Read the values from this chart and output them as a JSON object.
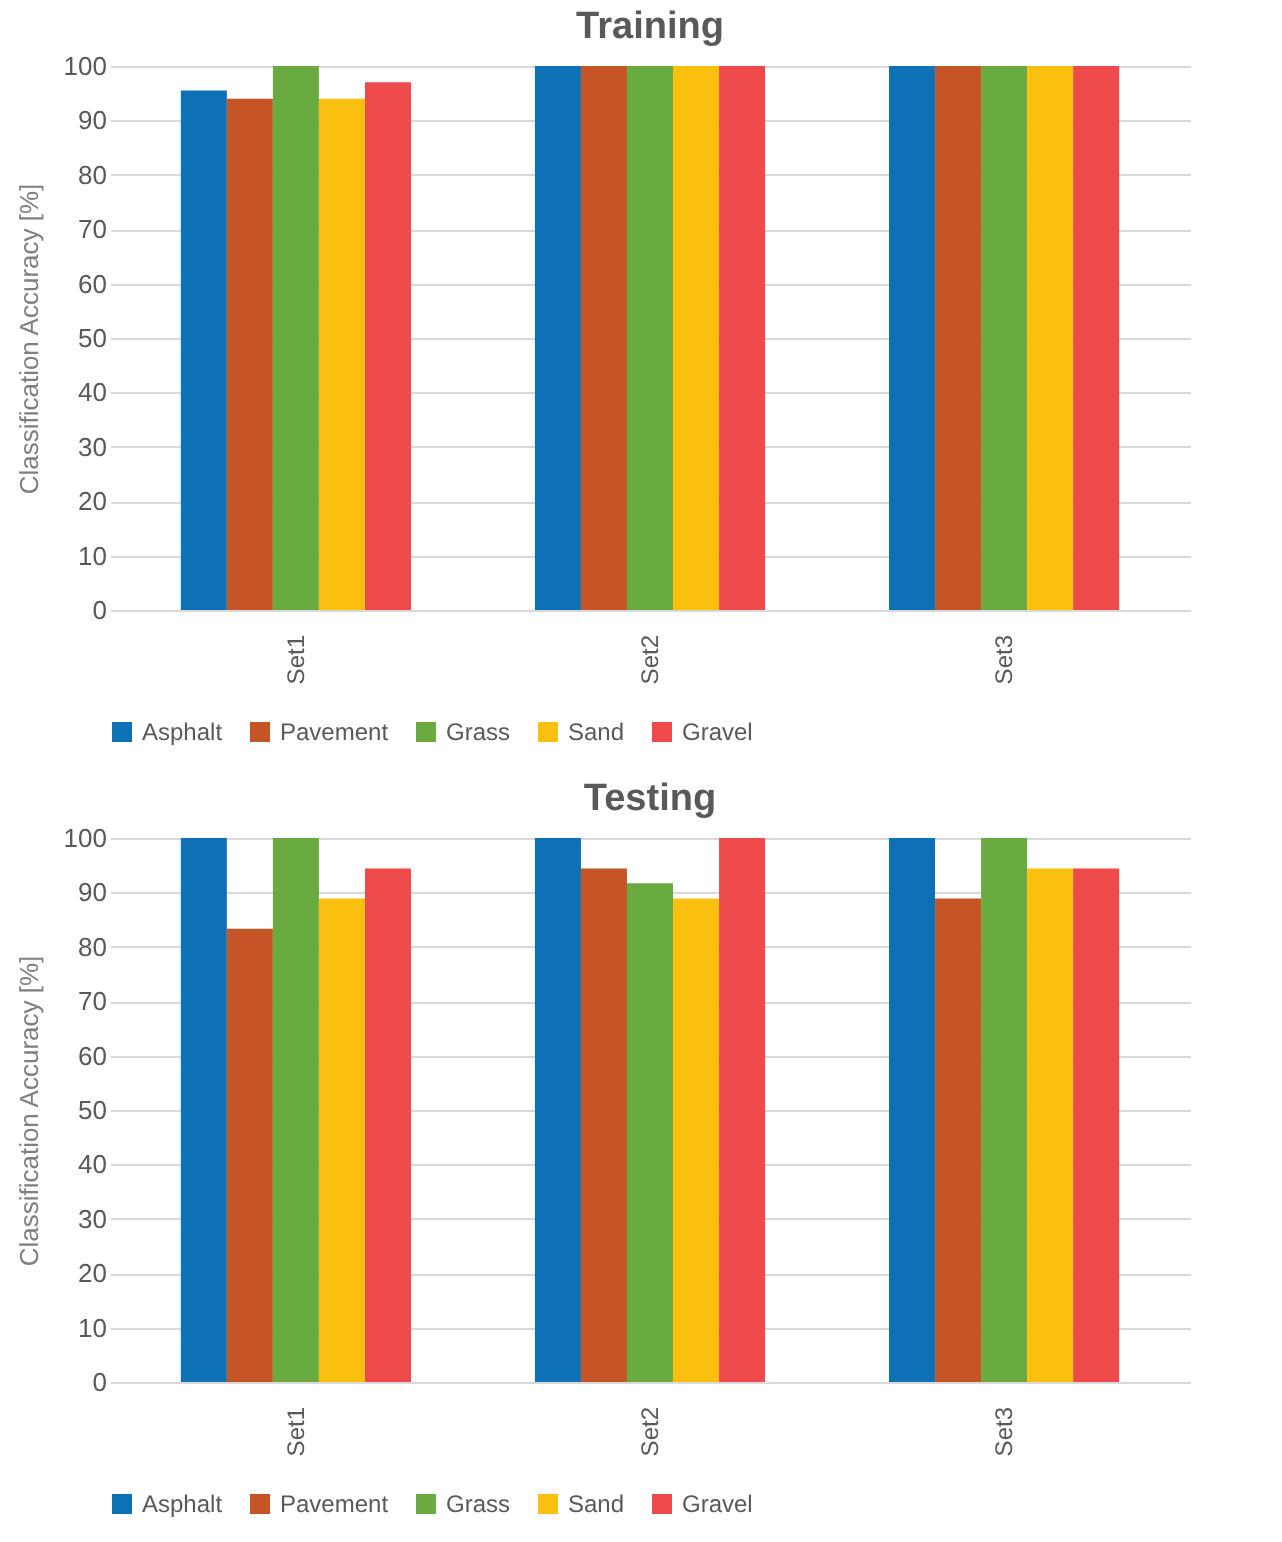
{
  "chart_data": [
    {
      "type": "bar",
      "title": "Training",
      "ylabel": "Classification Accuracy [%]",
      "categories": [
        "Set1",
        "Set2",
        "Set3"
      ],
      "series": [
        {
          "name": "Asphalt",
          "color": "#0e70b5",
          "values": [
            95.5,
            100,
            100
          ]
        },
        {
          "name": "Pavement",
          "color": "#c55527",
          "values": [
            94,
            100,
            100
          ]
        },
        {
          "name": "Grass",
          "color": "#69aa41",
          "values": [
            100,
            100,
            100
          ]
        },
        {
          "name": "Sand",
          "color": "#fbbf10",
          "values": [
            94,
            100,
            100
          ]
        },
        {
          "name": "Gravel",
          "color": "#ef4a4b",
          "values": [
            97,
            100,
            100
          ]
        }
      ],
      "ylim": [
        0,
        100
      ],
      "yticks": [
        0,
        10,
        20,
        30,
        40,
        50,
        60,
        70,
        80,
        90,
        100
      ],
      "grid": "y",
      "legend": "bottom"
    },
    {
      "type": "bar",
      "title": "Testing",
      "ylabel": "Classification Accuracy [%]",
      "categories": [
        "Set1",
        "Set2",
        "Set3"
      ],
      "series": [
        {
          "name": "Asphalt",
          "color": "#0e70b5",
          "values": [
            100,
            100,
            100
          ]
        },
        {
          "name": "Pavement",
          "color": "#c55527",
          "values": [
            83.3,
            94.4,
            88.9
          ]
        },
        {
          "name": "Grass",
          "color": "#69aa41",
          "values": [
            100,
            91.7,
            100
          ]
        },
        {
          "name": "Sand",
          "color": "#fbbf10",
          "values": [
            88.9,
            88.9,
            94.4
          ]
        },
        {
          "name": "Gravel",
          "color": "#ef4a4b",
          "values": [
            94.4,
            100,
            94.4
          ]
        }
      ],
      "ylim": [
        0,
        100
      ],
      "yticks": [
        0,
        10,
        20,
        30,
        40,
        50,
        60,
        70,
        80,
        90,
        100
      ],
      "grid": "y",
      "legend": "bottom"
    }
  ]
}
